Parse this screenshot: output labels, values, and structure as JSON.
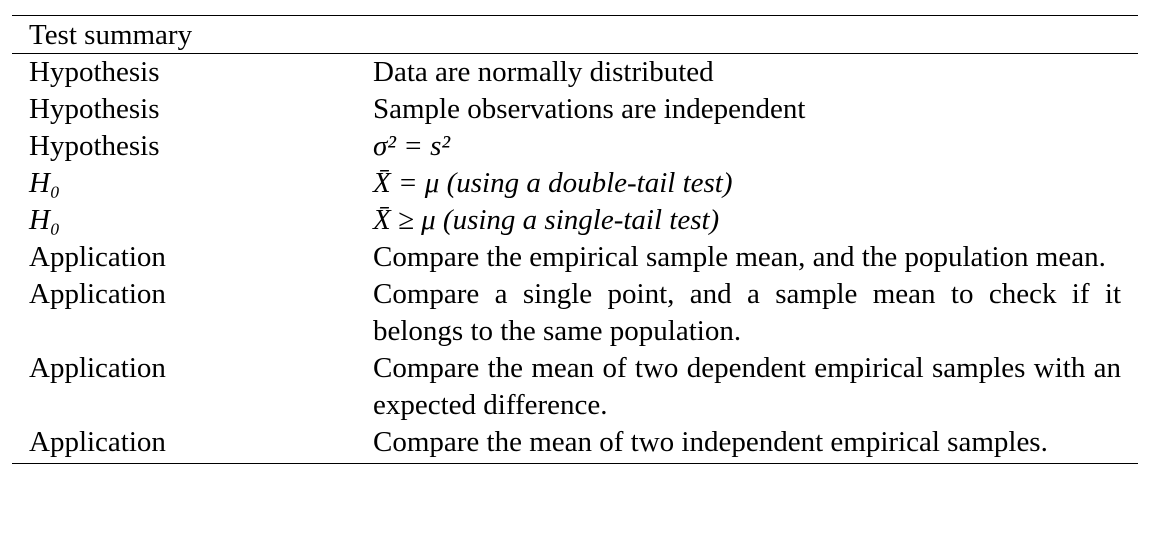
{
  "table": {
    "header": "Test summary",
    "rows": [
      {
        "label": "Hypothesis",
        "text": "Data are normally distributed",
        "kind": "text"
      },
      {
        "label": "Hypothesis",
        "text": "Sample observations are independent",
        "kind": "text"
      },
      {
        "label": "Hypothesis",
        "text": "σ² = s²",
        "kind": "math"
      },
      {
        "label": "H₀",
        "text": "X̄ = μ (using a double-tail test)",
        "kind": "math"
      },
      {
        "label": "H₀",
        "text": "X̄ ≥ μ (using a single-tail test)",
        "kind": "math"
      },
      {
        "label": "Application",
        "text": "Compare the empirical sample mean, and the population mean.",
        "kind": "text"
      },
      {
        "label": "Application",
        "text": "Compare a single point, and a sample mean to check if it belongs to the same population.",
        "kind": "text"
      },
      {
        "label": "Application",
        "text": "Compare the mean of two dependent empirical samples with an expected difference.",
        "kind": "text"
      },
      {
        "label": "Application",
        "text": "Compare the mean of two independent empirical samples.",
        "kind": "text"
      }
    ]
  }
}
